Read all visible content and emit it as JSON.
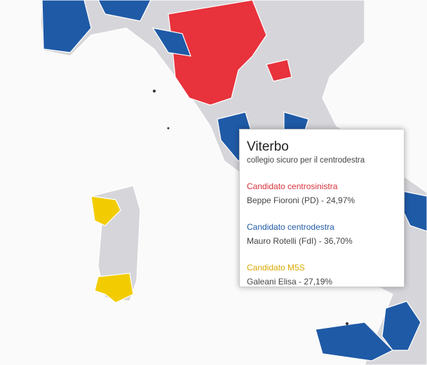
{
  "tooltip": {
    "title": "Viterbo",
    "subtitle": "collegio sicuro per il centrodestra",
    "candidates": [
      {
        "label": "Candidato centrosinistra",
        "text": "Beppe Fioroni (PD) - 24,97%"
      },
      {
        "label": "Candidato centrodestra",
        "text": "Mauro Rotelli  (FdI) - 36,70%"
      },
      {
        "label": "Candidato M5S",
        "text": "Galeani Elisa - 27,19%"
      }
    ]
  }
}
